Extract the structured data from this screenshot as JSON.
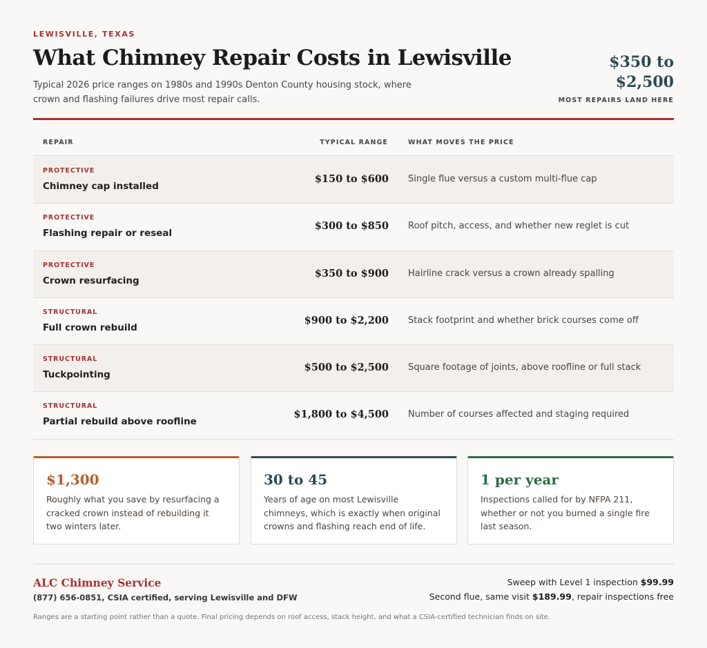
{
  "header": {
    "eyebrow": "LEWISVILLE, TEXAS",
    "title": "What Chimney Repair Costs in Lewisville",
    "subtitle": "Typical 2026 price ranges on 1980s and 1990s Denton County housing stock, where crown and flashing failures drive most repair calls.",
    "hero_price_line1": "$350 to",
    "hero_price_line2": "$2,500",
    "hero_caption": "MOST REPAIRS LAND HERE"
  },
  "table": {
    "headers": {
      "repair": "REPAIR",
      "range": "TYPICAL RANGE",
      "moves": "WHAT MOVES THE PRICE"
    },
    "rows": [
      {
        "tag": "PROTECTIVE",
        "name": "Chimney cap installed",
        "range": "$150 to $600",
        "note": "Single flue versus a custom multi-flue cap"
      },
      {
        "tag": "PROTECTIVE",
        "name": "Flashing repair or reseal",
        "range": "$300 to $850",
        "note": "Roof pitch, access, and whether new reglet is cut"
      },
      {
        "tag": "PROTECTIVE",
        "name": "Crown resurfacing",
        "range": "$350 to $900",
        "note": "Hairline crack versus a crown already spalling"
      },
      {
        "tag": "STRUCTURAL",
        "name": "Full crown rebuild",
        "range": "$900 to $2,200",
        "note": "Stack footprint and whether brick courses come off"
      },
      {
        "tag": "STRUCTURAL",
        "name": "Tuckpointing",
        "range": "$500 to $2,500",
        "note": "Square footage of joints, above roofline or full stack"
      },
      {
        "tag": "STRUCTURAL",
        "name": "Partial rebuild above roofline",
        "range": "$1,800 to $4,500",
        "note": "Number of courses affected and staging required"
      }
    ]
  },
  "cards": [
    {
      "value": "$1,300",
      "text": "Roughly what you save by resurfacing a cracked crown instead of rebuilding it two winters later.",
      "color": "#b5602a"
    },
    {
      "value": "30 to 45",
      "text": "Years of age on most Lewisville chimneys, which is exactly when original crowns and flashing reach end of life.",
      "color": "#2d4a52"
    },
    {
      "value": "1 per year",
      "text": "Inspections called for by NFPA 211, whether or not you burned a single fire last season.",
      "color": "#2f6b45"
    }
  ],
  "footer": {
    "brand": "ALC Chimney Service",
    "contact": "(877) 656-0851, CSIA certified, serving Lewisville and DFW",
    "line1_prefix": "Sweep with Level 1 inspection ",
    "line1_price": "$99.99",
    "line2_prefix": "Second flue, same visit ",
    "line2_price": "$189.99",
    "line2_suffix": ", repair inspections free",
    "disclaimer": "Ranges are a starting point rather than a quote. Final pricing depends on roof access, stack height, and what a CSIA-certified technician finds on site."
  },
  "colors": {
    "accent_red": "#a83232",
    "slate": "#2d4a52"
  }
}
